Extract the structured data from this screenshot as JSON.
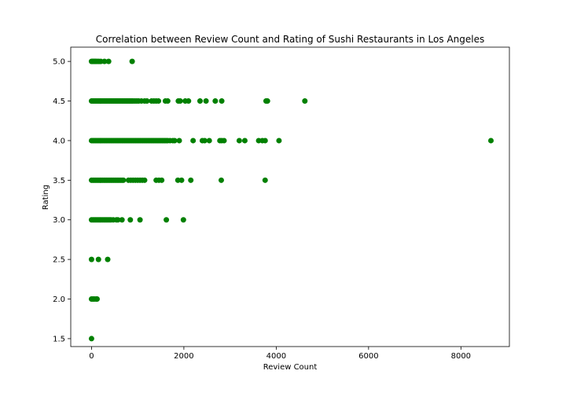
{
  "chart_data": {
    "type": "scatter",
    "title": "Correlation between Review Count and Rating of Sushi Restaurants in Los Angeles",
    "xlabel": "Review Count",
    "ylabel": "Rating",
    "xlim": [
      -450,
      9050
    ],
    "ylim": [
      1.4,
      5.18
    ],
    "xticks": [
      0,
      2000,
      4000,
      6000,
      8000
    ],
    "xtick_labels": [
      "0",
      "2000",
      "4000",
      "6000",
      "8000"
    ],
    "yticks": [
      1.5,
      2.0,
      2.5,
      3.0,
      3.5,
      4.0,
      4.5,
      5.0
    ],
    "ytick_labels": [
      "1.5",
      "2.0",
      "2.5",
      "3.0",
      "3.5",
      "4.0",
      "4.5",
      "5.0"
    ],
    "grid": false,
    "marker_color": "#008000",
    "series": [
      {
        "points": [
          [
            0,
            5.0
          ],
          [
            20,
            5.0
          ],
          [
            40,
            5.0
          ],
          [
            60,
            5.0
          ],
          [
            80,
            5.0
          ],
          [
            100,
            5.0
          ],
          [
            130,
            5.0
          ],
          [
            160,
            5.0
          ],
          [
            200,
            5.0
          ],
          [
            280,
            5.0
          ],
          [
            370,
            5.0
          ],
          [
            880,
            5.0
          ],
          [
            0,
            4.5
          ],
          [
            30,
            4.5
          ],
          [
            60,
            4.5
          ],
          [
            90,
            4.5
          ],
          [
            120,
            4.5
          ],
          [
            150,
            4.5
          ],
          [
            180,
            4.5
          ],
          [
            210,
            4.5
          ],
          [
            240,
            4.5
          ],
          [
            270,
            4.5
          ],
          [
            300,
            4.5
          ],
          [
            330,
            4.5
          ],
          [
            360,
            4.5
          ],
          [
            390,
            4.5
          ],
          [
            420,
            4.5
          ],
          [
            450,
            4.5
          ],
          [
            480,
            4.5
          ],
          [
            510,
            4.5
          ],
          [
            540,
            4.5
          ],
          [
            570,
            4.5
          ],
          [
            600,
            4.5
          ],
          [
            630,
            4.5
          ],
          [
            660,
            4.5
          ],
          [
            690,
            4.5
          ],
          [
            720,
            4.5
          ],
          [
            750,
            4.5
          ],
          [
            780,
            4.5
          ],
          [
            810,
            4.5
          ],
          [
            840,
            4.5
          ],
          [
            870,
            4.5
          ],
          [
            900,
            4.5
          ],
          [
            940,
            4.5
          ],
          [
            980,
            4.5
          ],
          [
            1020,
            4.5
          ],
          [
            1080,
            4.5
          ],
          [
            1150,
            4.5
          ],
          [
            1200,
            4.5
          ],
          [
            1300,
            4.5
          ],
          [
            1350,
            4.5
          ],
          [
            1400,
            4.5
          ],
          [
            1450,
            4.5
          ],
          [
            1600,
            4.5
          ],
          [
            1650,
            4.5
          ],
          [
            1880,
            4.5
          ],
          [
            1920,
            4.5
          ],
          [
            2030,
            4.5
          ],
          [
            2100,
            4.5
          ],
          [
            2350,
            4.5
          ],
          [
            2480,
            4.5
          ],
          [
            2680,
            4.5
          ],
          [
            2820,
            4.5
          ],
          [
            3780,
            4.5
          ],
          [
            3810,
            4.5
          ],
          [
            4620,
            4.5
          ],
          [
            0,
            4.0
          ],
          [
            30,
            4.0
          ],
          [
            60,
            4.0
          ],
          [
            90,
            4.0
          ],
          [
            120,
            4.0
          ],
          [
            150,
            4.0
          ],
          [
            180,
            4.0
          ],
          [
            210,
            4.0
          ],
          [
            240,
            4.0
          ],
          [
            270,
            4.0
          ],
          [
            300,
            4.0
          ],
          [
            330,
            4.0
          ],
          [
            360,
            4.0
          ],
          [
            390,
            4.0
          ],
          [
            420,
            4.0
          ],
          [
            450,
            4.0
          ],
          [
            480,
            4.0
          ],
          [
            510,
            4.0
          ],
          [
            540,
            4.0
          ],
          [
            570,
            4.0
          ],
          [
            600,
            4.0
          ],
          [
            630,
            4.0
          ],
          [
            660,
            4.0
          ],
          [
            690,
            4.0
          ],
          [
            720,
            4.0
          ],
          [
            750,
            4.0
          ],
          [
            780,
            4.0
          ],
          [
            810,
            4.0
          ],
          [
            840,
            4.0
          ],
          [
            870,
            4.0
          ],
          [
            900,
            4.0
          ],
          [
            930,
            4.0
          ],
          [
            960,
            4.0
          ],
          [
            990,
            4.0
          ],
          [
            1020,
            4.0
          ],
          [
            1050,
            4.0
          ],
          [
            1080,
            4.0
          ],
          [
            1110,
            4.0
          ],
          [
            1140,
            4.0
          ],
          [
            1170,
            4.0
          ],
          [
            1200,
            4.0
          ],
          [
            1230,
            4.0
          ],
          [
            1260,
            4.0
          ],
          [
            1290,
            4.0
          ],
          [
            1320,
            4.0
          ],
          [
            1350,
            4.0
          ],
          [
            1380,
            4.0
          ],
          [
            1410,
            4.0
          ],
          [
            1440,
            4.0
          ],
          [
            1470,
            4.0
          ],
          [
            1500,
            4.0
          ],
          [
            1530,
            4.0
          ],
          [
            1560,
            4.0
          ],
          [
            1590,
            4.0
          ],
          [
            1620,
            4.0
          ],
          [
            1650,
            4.0
          ],
          [
            1700,
            4.0
          ],
          [
            1760,
            4.0
          ],
          [
            1800,
            4.0
          ],
          [
            1900,
            4.0
          ],
          [
            2200,
            4.0
          ],
          [
            2400,
            4.0
          ],
          [
            2450,
            4.0
          ],
          [
            2550,
            4.0
          ],
          [
            2780,
            4.0
          ],
          [
            2820,
            4.0
          ],
          [
            2870,
            4.0
          ],
          [
            3200,
            4.0
          ],
          [
            3320,
            4.0
          ],
          [
            3620,
            4.0
          ],
          [
            3700,
            4.0
          ],
          [
            3760,
            4.0
          ],
          [
            4060,
            4.0
          ],
          [
            8650,
            4.0
          ],
          [
            0,
            3.5
          ],
          [
            30,
            3.5
          ],
          [
            60,
            3.5
          ],
          [
            90,
            3.5
          ],
          [
            120,
            3.5
          ],
          [
            150,
            3.5
          ],
          [
            180,
            3.5
          ],
          [
            210,
            3.5
          ],
          [
            240,
            3.5
          ],
          [
            270,
            3.5
          ],
          [
            300,
            3.5
          ],
          [
            330,
            3.5
          ],
          [
            360,
            3.5
          ],
          [
            390,
            3.5
          ],
          [
            420,
            3.5
          ],
          [
            450,
            3.5
          ],
          [
            480,
            3.5
          ],
          [
            510,
            3.5
          ],
          [
            540,
            3.5
          ],
          [
            570,
            3.5
          ],
          [
            600,
            3.5
          ],
          [
            630,
            3.5
          ],
          [
            660,
            3.5
          ],
          [
            690,
            3.5
          ],
          [
            800,
            3.5
          ],
          [
            850,
            3.5
          ],
          [
            900,
            3.5
          ],
          [
            950,
            3.5
          ],
          [
            1000,
            3.5
          ],
          [
            1050,
            3.5
          ],
          [
            1100,
            3.5
          ],
          [
            1150,
            3.5
          ],
          [
            1400,
            3.5
          ],
          [
            1460,
            3.5
          ],
          [
            1520,
            3.5
          ],
          [
            1870,
            3.5
          ],
          [
            1950,
            3.5
          ],
          [
            2150,
            3.5
          ],
          [
            2810,
            3.5
          ],
          [
            3760,
            3.5
          ],
          [
            0,
            3.0
          ],
          [
            30,
            3.0
          ],
          [
            60,
            3.0
          ],
          [
            90,
            3.0
          ],
          [
            120,
            3.0
          ],
          [
            150,
            3.0
          ],
          [
            180,
            3.0
          ],
          [
            210,
            3.0
          ],
          [
            240,
            3.0
          ],
          [
            270,
            3.0
          ],
          [
            300,
            3.0
          ],
          [
            330,
            3.0
          ],
          [
            360,
            3.0
          ],
          [
            390,
            3.0
          ],
          [
            420,
            3.0
          ],
          [
            470,
            3.0
          ],
          [
            540,
            3.0
          ],
          [
            570,
            3.0
          ],
          [
            660,
            3.0
          ],
          [
            840,
            3.0
          ],
          [
            1050,
            3.0
          ],
          [
            1620,
            3.0
          ],
          [
            1990,
            3.0
          ],
          [
            0,
            2.5
          ],
          [
            150,
            2.5
          ],
          [
            350,
            2.5
          ],
          [
            0,
            2.0
          ],
          [
            30,
            2.0
          ],
          [
            60,
            2.0
          ],
          [
            100,
            2.0
          ],
          [
            120,
            2.0
          ],
          [
            0,
            1.5
          ]
        ]
      }
    ]
  }
}
